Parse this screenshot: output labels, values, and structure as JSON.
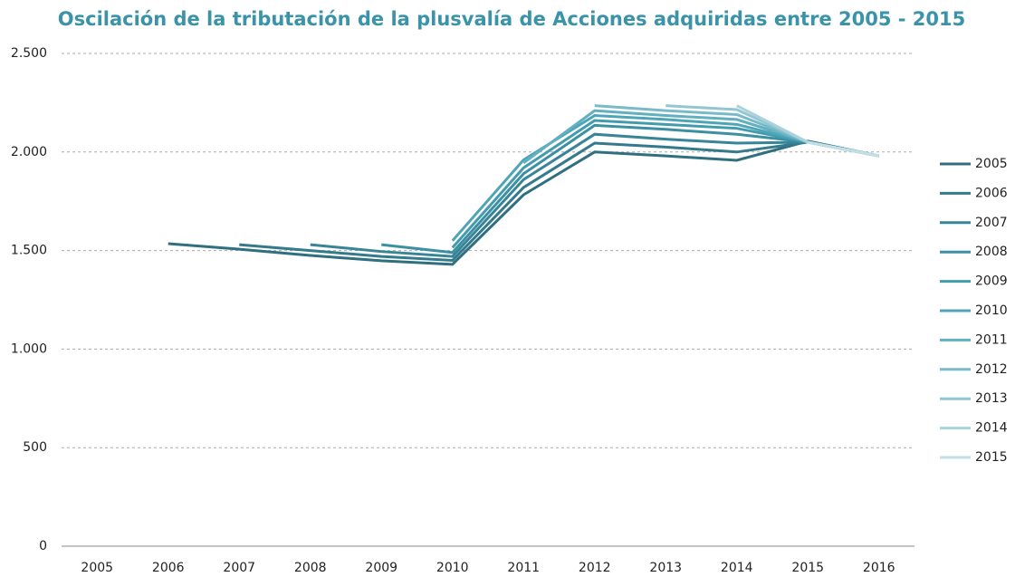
{
  "chart_data": {
    "type": "line",
    "title": "Oscilación de la tributación de  la plusvalía de Acciones adquiridas entre 2005   - 2015",
    "categories": [
      "2005",
      "2006",
      "2007",
      "2008",
      "2009",
      "2010",
      "2011",
      "2012",
      "2013",
      "2014",
      "2015",
      "2016"
    ],
    "ylim": [
      0,
      2500
    ],
    "yticks": [
      0,
      500,
      {
        "value": 1000,
        "label": "1.000"
      },
      {
        "value": 1500,
        "label": "1.500"
      },
      {
        "value": 2000,
        "label": "2.000"
      },
      {
        "value": 2500,
        "label": "2.500"
      }
    ],
    "grid": true,
    "legend": "right",
    "series": [
      {
        "name": "2005",
        "color": "#2f6f80",
        "values": [
          null,
          1535,
          1507,
          1475,
          1448,
          1430,
          1783,
          2000,
          1980,
          1958,
          2055,
          1980
        ]
      },
      {
        "name": "2006",
        "color": "#337a8c",
        "values": [
          null,
          null,
          1530,
          1500,
          1470,
          1450,
          1820,
          2045,
          2025,
          2000,
          2050,
          1980
        ]
      },
      {
        "name": "2007",
        "color": "#378597",
        "values": [
          null,
          null,
          null,
          1530,
          1495,
          1470,
          1860,
          2090,
          2065,
          2045,
          2050,
          1980
        ]
      },
      {
        "name": "2008",
        "color": "#3c90a3",
        "values": [
          null,
          null,
          null,
          null,
          1530,
          1490,
          1890,
          2135,
          2115,
          2090,
          2050,
          1980
        ]
      },
      {
        "name": "2009",
        "color": "#439bae",
        "values": [
          null,
          null,
          null,
          null,
          null,
          1515,
          1920,
          2160,
          2140,
          2120,
          2050,
          1980
        ]
      },
      {
        "name": "2010",
        "color": "#4fa5b8",
        "values": [
          null,
          null,
          null,
          null,
          null,
          1550,
          1960,
          2185,
          2165,
          2140,
          2050,
          1980
        ]
      },
      {
        "name": "2011",
        "color": "#62afc0",
        "values": [
          null,
          null,
          null,
          null,
          null,
          null,
          1945,
          2210,
          2185,
          2165,
          2050,
          1980
        ]
      },
      {
        "name": "2012",
        "color": "#79bac9",
        "values": [
          null,
          null,
          null,
          null,
          null,
          null,
          null,
          2235,
          2210,
          2190,
          2050,
          1980
        ]
      },
      {
        "name": "2013",
        "color": "#91c6d2",
        "values": [
          null,
          null,
          null,
          null,
          null,
          null,
          null,
          null,
          2235,
          2215,
          2050,
          1980
        ]
      },
      {
        "name": "2014",
        "color": "#aad2dc",
        "values": [
          null,
          null,
          null,
          null,
          null,
          null,
          null,
          null,
          null,
          2235,
          2050,
          1980
        ]
      },
      {
        "name": "2015",
        "color": "#c3dfe6",
        "values": [
          null,
          null,
          null,
          null,
          null,
          null,
          null,
          null,
          null,
          null,
          2050,
          1980
        ]
      }
    ]
  }
}
